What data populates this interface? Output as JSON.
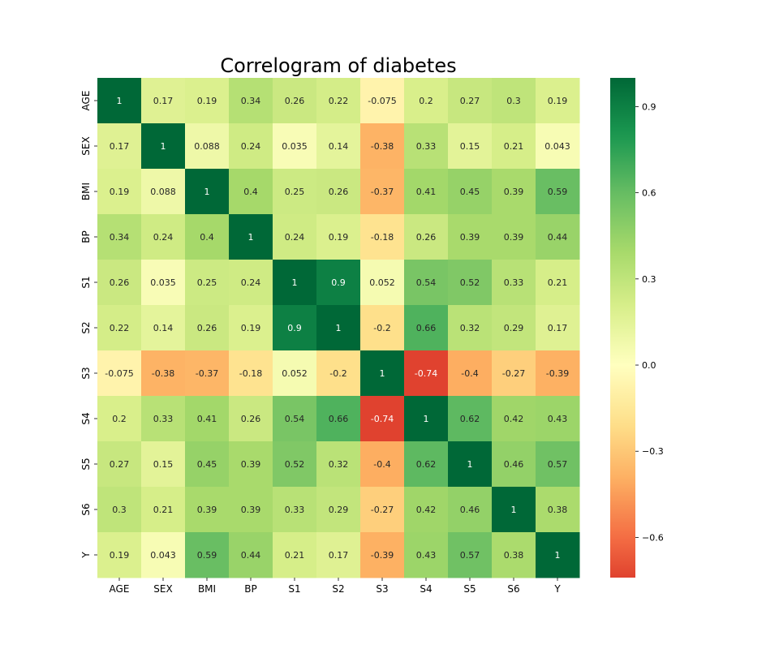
{
  "chart_data": {
    "type": "heatmap",
    "title": "Correlogram of diabetes",
    "xlabel": "",
    "ylabel": "",
    "x_categories": [
      "AGE",
      "SEX",
      "BMI",
      "BP",
      "S1",
      "S2",
      "S3",
      "S4",
      "S5",
      "S6",
      "Y"
    ],
    "y_categories": [
      "AGE",
      "SEX",
      "BMI",
      "BP",
      "S1",
      "S2",
      "S3",
      "S4",
      "S5",
      "S6",
      "Y"
    ],
    "values": [
      [
        1,
        0.17,
        0.19,
        0.34,
        0.26,
        0.22,
        -0.075,
        0.2,
        0.27,
        0.3,
        0.19
      ],
      [
        0.17,
        1,
        0.088,
        0.24,
        0.035,
        0.14,
        -0.38,
        0.33,
        0.15,
        0.21,
        0.043
      ],
      [
        0.19,
        0.088,
        1,
        0.4,
        0.25,
        0.26,
        -0.37,
        0.41,
        0.45,
        0.39,
        0.59
      ],
      [
        0.34,
        0.24,
        0.4,
        1,
        0.24,
        0.19,
        -0.18,
        0.26,
        0.39,
        0.39,
        0.44
      ],
      [
        0.26,
        0.035,
        0.25,
        0.24,
        1,
        0.9,
        0.052,
        0.54,
        0.52,
        0.33,
        0.21
      ],
      [
        0.22,
        0.14,
        0.26,
        0.19,
        0.9,
        1,
        -0.2,
        0.66,
        0.32,
        0.29,
        0.17
      ],
      [
        -0.075,
        -0.38,
        -0.37,
        -0.18,
        0.052,
        -0.2,
        1,
        -0.74,
        -0.4,
        -0.27,
        -0.39
      ],
      [
        0.2,
        0.33,
        0.41,
        0.26,
        0.54,
        0.66,
        -0.74,
        1,
        0.62,
        0.42,
        0.43
      ],
      [
        0.27,
        0.15,
        0.45,
        0.39,
        0.52,
        0.32,
        -0.4,
        0.62,
        1,
        0.46,
        0.57
      ],
      [
        0.3,
        0.21,
        0.39,
        0.39,
        0.33,
        0.29,
        -0.27,
        0.42,
        0.46,
        1,
        0.38
      ],
      [
        0.19,
        0.043,
        0.59,
        0.44,
        0.21,
        0.17,
        -0.39,
        0.43,
        0.57,
        0.38,
        1
      ]
    ],
    "colormap": "RdYlGn",
    "vmin": -0.74,
    "vmax": 1,
    "colorbar_ticks": [
      0.9,
      0.6,
      0.3,
      0.0,
      -0.3,
      -0.6
    ],
    "colorbar_tick_labels": [
      "0.9",
      "0.6",
      "0.3",
      "0.0",
      "−0.3",
      "−0.6"
    ],
    "annotated": true
  }
}
